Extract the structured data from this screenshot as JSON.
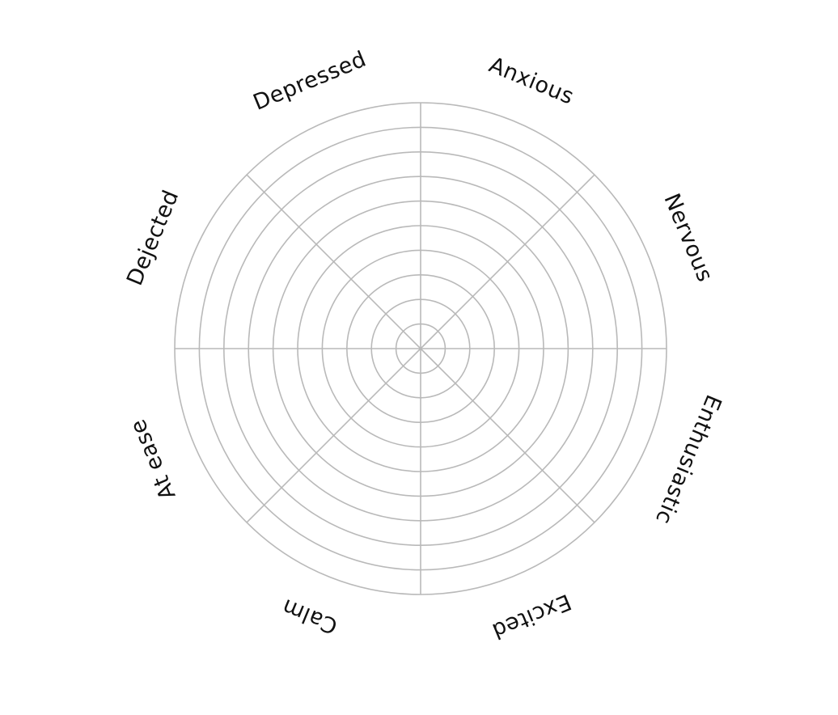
{
  "wheel": {
    "ring_count": 10,
    "spoke_count": 8,
    "line_color": "#b9b9b9",
    "label_color": "#111111",
    "labels": [
      "Anxious",
      "Nervous",
      "Enthusiastic",
      "Excited",
      "Calm",
      "At ease",
      "Dejected",
      "Depressed"
    ]
  }
}
